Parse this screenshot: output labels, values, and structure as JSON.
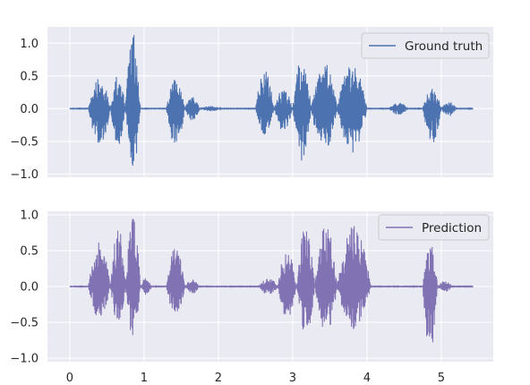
{
  "chart_data": [
    {
      "type": "line",
      "title": "",
      "xlabel": "",
      "ylabel": "",
      "xlim": [
        -0.3,
        5.7
      ],
      "ylim": [
        -1.05,
        1.25
      ],
      "x_ticks": [
        0,
        1,
        2,
        3,
        4,
        5
      ],
      "x_tick_labels_visible": false,
      "y_ticks": [
        1.0,
        0.5,
        0.0,
        -0.5,
        -1.0
      ],
      "y_tick_labels": [
        "1.0",
        "0.5",
        "0.0",
        "−0.5",
        "−1.0"
      ],
      "grid": true,
      "legend_position": "top-right",
      "series": [
        {
          "name": "Ground truth",
          "color": "#4c72b0",
          "x_range": [
            0,
            5.43
          ],
          "bursts": [
            {
              "x": [
                0.25,
                0.55
              ],
              "peak": 0.48,
              "neg_peak": -0.55
            },
            {
              "x": [
                0.55,
                0.75
              ],
              "peak": 0.52,
              "neg_peak": -0.6
            },
            {
              "x": [
                0.75,
                0.95
              ],
              "peak": 1.18,
              "neg_peak": -0.95
            },
            {
              "x": [
                1.3,
                1.55
              ],
              "peak": 0.45,
              "neg_peak": -0.58
            },
            {
              "x": [
                1.55,
                1.75
              ],
              "peak": 0.18,
              "neg_peak": -0.2
            },
            {
              "x": [
                1.75,
                2.05
              ],
              "peak": 0.04,
              "neg_peak": -0.04
            },
            {
              "x": [
                2.5,
                2.75
              ],
              "peak": 0.58,
              "neg_peak": -0.42
            },
            {
              "x": [
                2.75,
                3.0
              ],
              "peak": 0.3,
              "neg_peak": -0.35
            },
            {
              "x": [
                3.0,
                3.25
              ],
              "peak": 0.78,
              "neg_peak": -0.82
            },
            {
              "x": [
                3.25,
                3.6
              ],
              "peak": 0.72,
              "neg_peak": -0.67
            },
            {
              "x": [
                3.6,
                4.0
              ],
              "peak": 0.71,
              "neg_peak": -0.68
            },
            {
              "x": [
                4.3,
                4.55
              ],
              "peak": 0.1,
              "neg_peak": -0.1
            },
            {
              "x": [
                4.75,
                5.0
              ],
              "peak": 0.3,
              "neg_peak": -0.55
            },
            {
              "x": [
                5.0,
                5.2
              ],
              "peak": 0.12,
              "neg_peak": -0.12
            }
          ]
        }
      ]
    },
    {
      "type": "line",
      "title": "",
      "xlabel": "",
      "ylabel": "",
      "xlim": [
        -0.3,
        5.7
      ],
      "ylim": [
        -1.05,
        1.05
      ],
      "x_ticks": [
        0,
        1,
        2,
        3,
        4,
        5
      ],
      "x_tick_labels": [
        "0",
        "1",
        "2",
        "3",
        "4",
        "5"
      ],
      "y_ticks": [
        1.0,
        0.5,
        0.0,
        -0.5,
        -1.0
      ],
      "y_tick_labels": [
        "1.0",
        "0.5",
        "0.0",
        "−0.5",
        "−1.0"
      ],
      "grid": true,
      "legend_position": "top-right",
      "series": [
        {
          "name": "Prediction",
          "color": "#8172b3",
          "x_range": [
            0,
            5.43
          ],
          "bursts": [
            {
              "x": [
                0.25,
                0.55
              ],
              "peak": 0.62,
              "neg_peak": -0.45
            },
            {
              "x": [
                0.55,
                0.75
              ],
              "peak": 0.85,
              "neg_peak": -0.6
            },
            {
              "x": [
                0.75,
                0.95
              ],
              "peak": 1.03,
              "neg_peak": -0.7
            },
            {
              "x": [
                0.95,
                1.1
              ],
              "peak": 0.12,
              "neg_peak": -0.12
            },
            {
              "x": [
                1.3,
                1.55
              ],
              "peak": 0.58,
              "neg_peak": -0.42
            },
            {
              "x": [
                1.55,
                1.75
              ],
              "peak": 0.1,
              "neg_peak": -0.1
            },
            {
              "x": [
                2.55,
                2.8
              ],
              "peak": 0.12,
              "neg_peak": -0.12
            },
            {
              "x": [
                2.8,
                3.05
              ],
              "peak": 0.52,
              "neg_peak": -0.45
            },
            {
              "x": [
                3.05,
                3.3
              ],
              "peak": 0.84,
              "neg_peak": -0.7
            },
            {
              "x": [
                3.3,
                3.6
              ],
              "peak": 0.87,
              "neg_peak": -0.65
            },
            {
              "x": [
                3.6,
                4.05
              ],
              "peak": 0.88,
              "neg_peak": -0.6
            },
            {
              "x": [
                4.75,
                4.95
              ],
              "peak": 0.66,
              "neg_peak": -0.92
            },
            {
              "x": [
                4.95,
                5.15
              ],
              "peak": 0.08,
              "neg_peak": -0.08
            }
          ]
        }
      ]
    }
  ]
}
